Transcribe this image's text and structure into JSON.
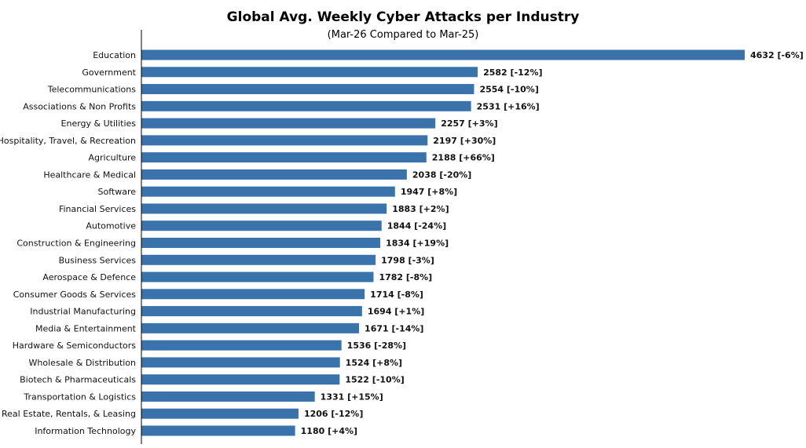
{
  "chart_data": {
    "type": "bar",
    "orientation": "horizontal",
    "title": "Global Avg. Weekly Cyber Attacks per Industry",
    "subtitle": "(Mar-26 Compared to Mar-25)",
    "bar_color": "#3a72ac",
    "xlim": [
      0,
      4632
    ],
    "categories": [
      "Education",
      "Government",
      "Telecommunications",
      "Associations & Non Profits",
      "Energy & Utilities",
      "Hospitality, Travel, & Recreation",
      "Agriculture",
      "Healthcare & Medical",
      "Software",
      "Financial Services",
      "Automotive",
      "Construction & Engineering",
      "Business Services",
      "Aerospace & Defence",
      "Consumer Goods & Services",
      "Industrial Manufacturing",
      "Media & Entertainment",
      "Hardware & Semiconductors",
      "Wholesale & Distribution",
      "Biotech & Pharmaceuticals",
      "Transportation & Logistics",
      "Real Estate, Rentals, & Leasing",
      "Information Technology"
    ],
    "values": [
      4632,
      2582,
      2554,
      2531,
      2257,
      2197,
      2188,
      2038,
      1947,
      1883,
      1844,
      1834,
      1798,
      1782,
      1714,
      1694,
      1671,
      1536,
      1524,
      1522,
      1331,
      1206,
      1180
    ],
    "changes": [
      "-6%",
      "-12%",
      "-10%",
      "+16%",
      "+3%",
      "+30%",
      "+66%",
      "-20%",
      "+8%",
      "+2%",
      "-24%",
      "+19%",
      "-3%",
      "-8%",
      "-8%",
      "+1%",
      "-14%",
      "-28%",
      "+8%",
      "-10%",
      "+15%",
      "-12%",
      "+4%"
    ],
    "data_labels": [
      "4632 [-6%]",
      "2582 [-12%]",
      "2554 [-10%]",
      "2531 [+16%]",
      "2257 [+3%]",
      "2197 [+30%]",
      "2188 [+66%]",
      "2038 [-20%]",
      "1947 [+8%]",
      "1883 [+2%]",
      "1844 [-24%]",
      "1834 [+19%]",
      "1798 [-3%]",
      "1782 [-8%]",
      "1714 [-8%]",
      "1694 [+1%]",
      "1671 [-14%]",
      "1536 [-28%]",
      "1524 [+8%]",
      "1522 [-10%]",
      "1331 [+15%]",
      "1206 [-12%]",
      "1180 [+4%]"
    ]
  }
}
